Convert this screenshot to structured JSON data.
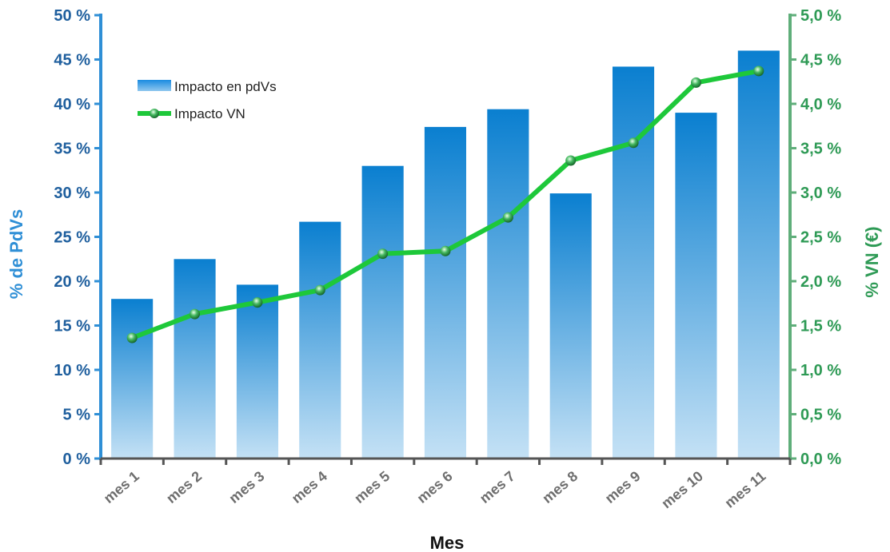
{
  "chart_data": {
    "type": "bar",
    "categories": [
      "mes 1",
      "mes 2",
      "mes 3",
      "mes 4",
      "mes 5",
      "mes 6",
      "mes 7",
      "mes 8",
      "mes 9",
      "mes 10",
      "mes 11"
    ],
    "series": [
      {
        "name": "Impacto en pdVs",
        "type": "bar",
        "axis": "left",
        "values": [
          18.0,
          22.5,
          19.6,
          26.7,
          33.0,
          37.4,
          39.4,
          29.9,
          44.2,
          39.0,
          46.0
        ]
      },
      {
        "name": "Impacto VN",
        "type": "line",
        "axis": "right",
        "values": [
          1.36,
          1.63,
          1.76,
          1.9,
          2.31,
          2.34,
          2.72,
          3.36,
          3.56,
          4.24,
          4.37
        ]
      }
    ],
    "xlabel": "Mes",
    "ylabel": "% de PdVs",
    "ylabel_right": "% VN (€)",
    "ylim": [
      0,
      50
    ],
    "ylim_right": [
      0,
      5
    ],
    "yticks": [
      "0 %",
      "5 %",
      "10 %",
      "15 %",
      "20 %",
      "25 %",
      "30 %",
      "35 %",
      "40 %",
      "45 %",
      "50 %"
    ],
    "yticks_right": [
      "0,0 %",
      "0,5 %",
      "1,0 %",
      "1,5 %",
      "2,0 %",
      "2,5 %",
      "3,0 %",
      "3,5 %",
      "4,0 %",
      "4,5 %",
      "5,0 %"
    ],
    "legend_position": "top-left",
    "grid": false,
    "colors": {
      "bar_top": "#0a7fd0",
      "bar_bottom": "#c4e1f5",
      "line": "#1ec83a",
      "left_axis": "#2f8fd6",
      "right_axis": "#5fae7a",
      "x_axis": "#555555"
    }
  }
}
